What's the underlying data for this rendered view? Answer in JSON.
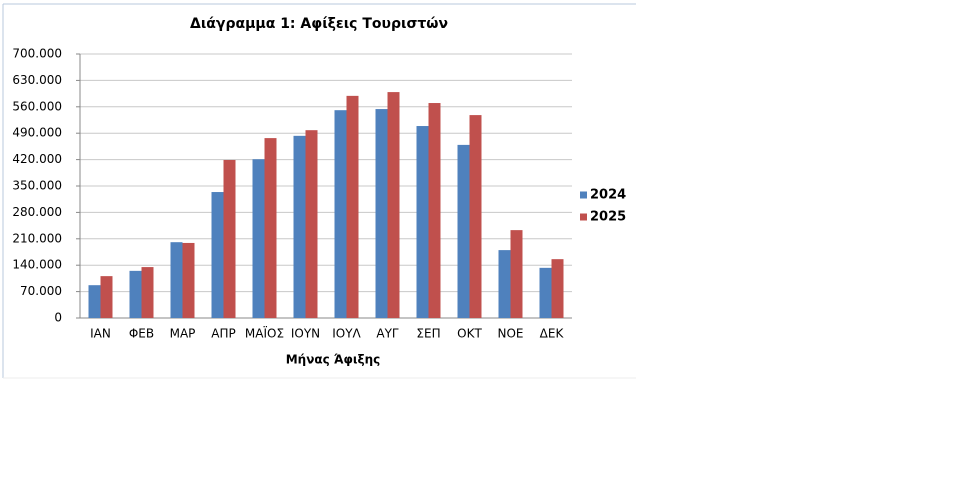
{
  "chart_data": {
    "type": "bar",
    "title": "Διάγραμμα 1: Αφίξεις Τουριστών",
    "x_label": "Μήνας Άφιξης",
    "categories": [
      "ΙΑΝ",
      "ΦΕΒ",
      "ΜΑΡ",
      "ΑΠΡ",
      "ΜΑΪΟΣ",
      "ΙΟΥΝ",
      "ΙΟΥΛ",
      "ΑΥΓ",
      "ΣΕΠ",
      "ΟΚΤ",
      "ΝΟΕ",
      "ΔΕΚ"
    ],
    "series": [
      {
        "name": "2024",
        "color": "#4f81bd",
        "values": [
          87000,
          125000,
          201000,
          334000,
          421000,
          483000,
          551000,
          554000,
          509000,
          459000,
          180000,
          133000
        ]
      },
      {
        "name": "2025",
        "color": "#c0504d",
        "values": [
          111000,
          135000,
          199000,
          419000,
          477000,
          498000,
          589000,
          599000,
          570000,
          538000,
          233000,
          156000
        ]
      }
    ],
    "ylim": [
      0,
      700000
    ],
    "yticks": [
      0,
      {
        "value": 70000,
        "label": "70.000"
      },
      {
        "value": 140000,
        "label": "140.000"
      },
      {
        "value": 210000,
        "label": "210.000"
      },
      {
        "value": 280000,
        "label": "280.000"
      },
      {
        "value": 350000,
        "label": "350.000"
      },
      {
        "value": 420000,
        "label": "420.000"
      },
      {
        "value": 490000,
        "label": "490.000"
      },
      {
        "value": 560000,
        "label": "560.000"
      },
      {
        "value": 630000,
        "label": "630.000"
      },
      {
        "value": 700000,
        "label": "700.000"
      }
    ],
    "grid": true,
    "legend": "right"
  }
}
